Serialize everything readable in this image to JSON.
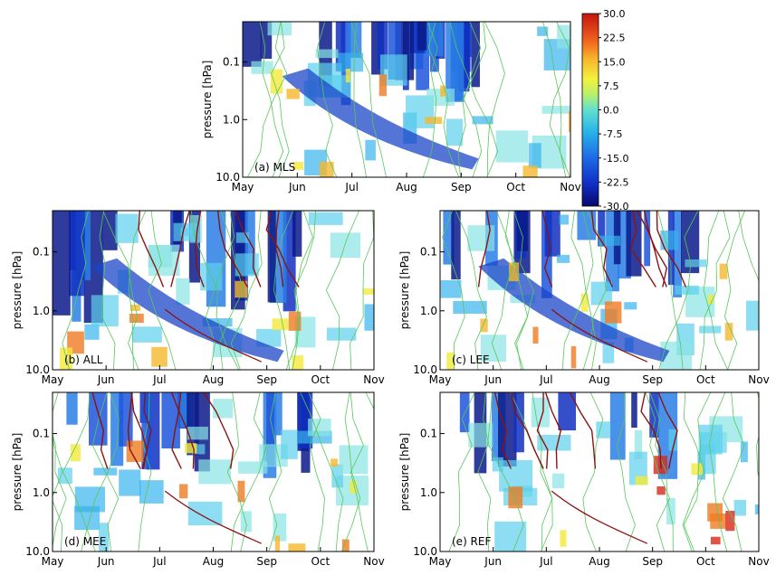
{
  "chart_data": [
    {
      "type": "heatmap",
      "panel_label": "(a) MLS",
      "ylabel": "pressure [hPa]",
      "yticks": [
        "0.1",
        "1.0",
        "10.0"
      ],
      "yscale": "log",
      "ylim": [
        10.0,
        0.02
      ],
      "xticks": [
        "May",
        "Jun",
        "Jul",
        "Aug",
        "Sep",
        "Oct",
        "Nov"
      ]
    },
    {
      "type": "heatmap",
      "panel_label": "(b) ALL",
      "ylabel": "pressure [hPa]",
      "yticks": [
        "0.1",
        "1.0",
        "10.0"
      ],
      "yscale": "log",
      "ylim": [
        10.0,
        0.02
      ],
      "xticks": [
        "May",
        "Jun",
        "Jul",
        "Aug",
        "Sep",
        "Oct",
        "Nov"
      ]
    },
    {
      "type": "heatmap",
      "panel_label": "(c) LEE",
      "ylabel": "pressure [hPa]",
      "yticks": [
        "0.1",
        "1.0",
        "10.0"
      ],
      "yscale": "log",
      "ylim": [
        10.0,
        0.02
      ],
      "xticks": [
        "May",
        "Jun",
        "Jul",
        "Aug",
        "Sep",
        "Oct",
        "Nov"
      ]
    },
    {
      "type": "heatmap",
      "panel_label": "(d) MEE",
      "ylabel": "pressure [hPa]",
      "yticks": [
        "0.1",
        "1.0",
        "10.0"
      ],
      "yscale": "log",
      "ylim": [
        10.0,
        0.02
      ],
      "xticks": [
        "May",
        "Jun",
        "Jul",
        "Aug",
        "Sep",
        "Oct",
        "Nov"
      ]
    },
    {
      "type": "heatmap",
      "panel_label": "(e) REF",
      "ylabel": "pressure [hPa]",
      "yticks": [
        "0.1",
        "1.0",
        "10.0"
      ],
      "yscale": "log",
      "ylim": [
        10.0,
        0.02
      ],
      "xticks": [
        "May",
        "Jun",
        "Jul",
        "Aug",
        "Sep",
        "Oct",
        "Nov"
      ]
    }
  ],
  "colorbar": {
    "ticks": [
      "30.0",
      "22.5",
      "15.0",
      "7.5",
      "0.0",
      "-7.5",
      "-15.0",
      "-22.5",
      "-30.0"
    ],
    "range": [
      -30.0,
      30.0
    ]
  }
}
